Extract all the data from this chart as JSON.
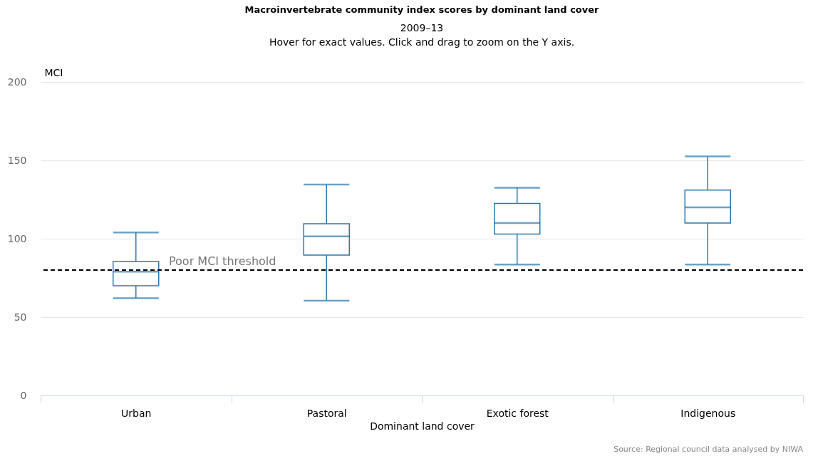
{
  "chart_data": {
    "type": "box",
    "title": "Macroinvertebrate community index scores by dominant land cover",
    "subtitle": "2009–13\nHover for exact values. Click and drag to zoom on the Y axis.",
    "xlabel": "Dominant land cover",
    "ylabel": "MCI",
    "categories": [
      "Urban",
      "Pastoral",
      "Exotic forest",
      "Indigenous"
    ],
    "series": [
      {
        "color": "#2a7ab0",
        "boxes": [
          {
            "low": 62,
            "q1": 70,
            "median": 79,
            "q3": 85.5,
            "high": 104
          },
          {
            "low": 60.5,
            "q1": 89.5,
            "median": 101.5,
            "q3": 109.5,
            "high": 134.5
          },
          {
            "low": 83.5,
            "q1": 103,
            "median": 110,
            "q3": 122.5,
            "high": 132.5
          },
          {
            "low": 83.5,
            "q1": 110,
            "median": 120,
            "q3": 131,
            "high": 152.5
          }
        ]
      }
    ],
    "ylim": [
      0,
      200
    ],
    "yticks": [
      0,
      50,
      100,
      150,
      200
    ],
    "grid": "y",
    "ref_lines": [
      {
        "axis": "y",
        "value": 80,
        "label": "Poor MCI threshold",
        "color": "#000000",
        "line_style": "dashed"
      }
    ],
    "annotations": [
      "Source: Regional council data analysed by NIWA"
    ]
  }
}
